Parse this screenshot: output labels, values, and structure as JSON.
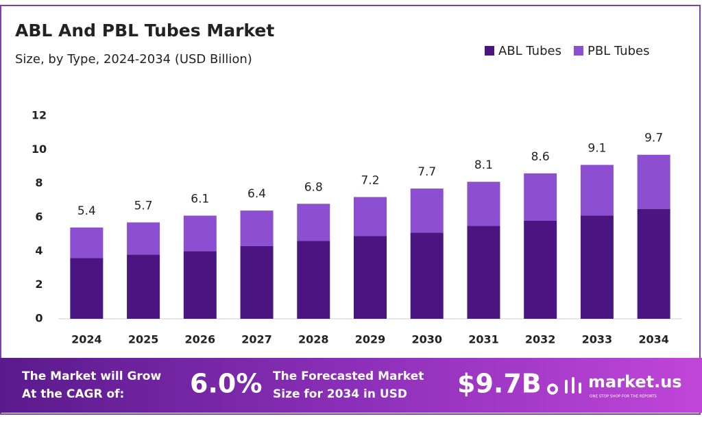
{
  "chart_data": {
    "type": "stacked-bar",
    "title": "ABL And PBL Tubes Market",
    "subtitle": "Size, by Type, 2024-2034 (USD Billion)",
    "categories": [
      "2024",
      "2025",
      "2026",
      "2027",
      "2028",
      "2029",
      "2030",
      "2031",
      "2032",
      "2033",
      "2034"
    ],
    "series": [
      {
        "name": "ABL Tubes",
        "color": "#4b1581",
        "values": [
          3.6,
          3.8,
          4.0,
          4.3,
          4.6,
          4.9,
          5.1,
          5.5,
          5.8,
          6.1,
          6.5
        ]
      },
      {
        "name": "PBL Tubes",
        "color": "#8c4fd1",
        "values": [
          1.8,
          1.9,
          2.1,
          2.1,
          2.2,
          2.3,
          2.6,
          2.6,
          2.8,
          3.0,
          3.2
        ]
      }
    ],
    "totals": [
      5.4,
      5.7,
      6.1,
      6.4,
      6.8,
      7.2,
      7.7,
      8.1,
      8.6,
      9.1,
      9.7
    ],
    "ylim": [
      0,
      12
    ],
    "yticks": [
      0,
      2,
      4,
      6,
      8,
      10,
      12
    ],
    "grid": false,
    "legend": "top-right"
  },
  "footer": {
    "cagr_text": [
      "The Market will Grow",
      "At the CAGR of:"
    ],
    "cagr": "6.0%",
    "forecast_text": [
      "The Forecasted Market",
      "Size for 2034 in USD"
    ],
    "forecast": "$9.7B",
    "brand": "market.us",
    "tagline": "ONE STOP SHOP FOR THE REPORTS"
  }
}
